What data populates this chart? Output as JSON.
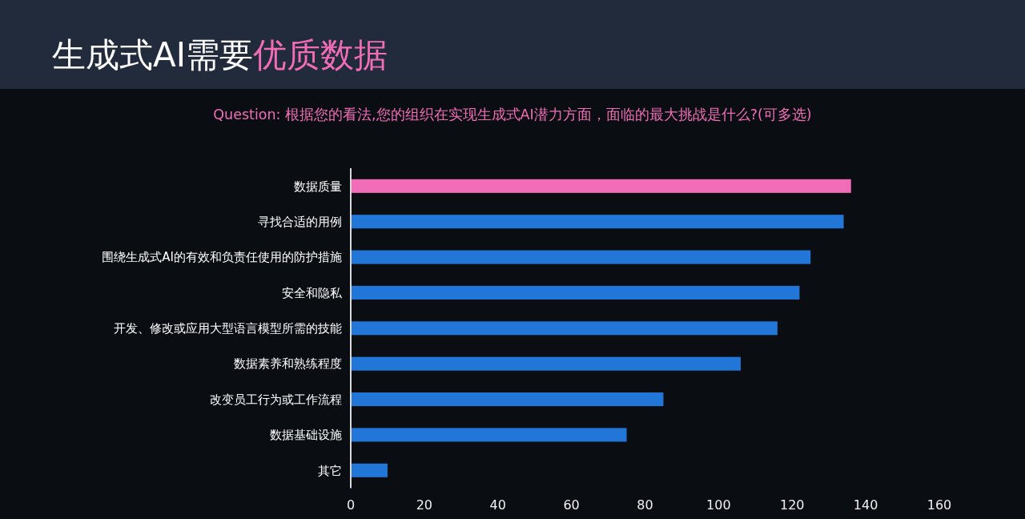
{
  "chart_data": {
    "type": "bar",
    "orientation": "horizontal",
    "title": "生成式AI需要优质数据",
    "subtitle": "Question: 根据您的看法,您的组织在实现生成式AI潜力方面，面临的最大挑战是什么?(可多选)",
    "categories": [
      "数据质量",
      "寻找合适的用例",
      "围绕生成式AI的有效和负责任使用的防护措施",
      "安全和隐私",
      "开发、修改或应用大型语言模型所需的技能",
      "数据素养和熟练程度",
      "改变员工行为或工作流程",
      "数据基础设施",
      "其它"
    ],
    "values": [
      136,
      134,
      125,
      122,
      116,
      106,
      85,
      75,
      10
    ],
    "colors": [
      "#f26db8",
      "#2176d8",
      "#2176d8",
      "#2176d8",
      "#2176d8",
      "#2176d8",
      "#2176d8",
      "#2176d8",
      "#2176d8"
    ],
    "xlim": [
      0,
      160
    ],
    "xticks": [
      0,
      20,
      40,
      60,
      80,
      100,
      120,
      140,
      160
    ],
    "grid": false
  }
}
